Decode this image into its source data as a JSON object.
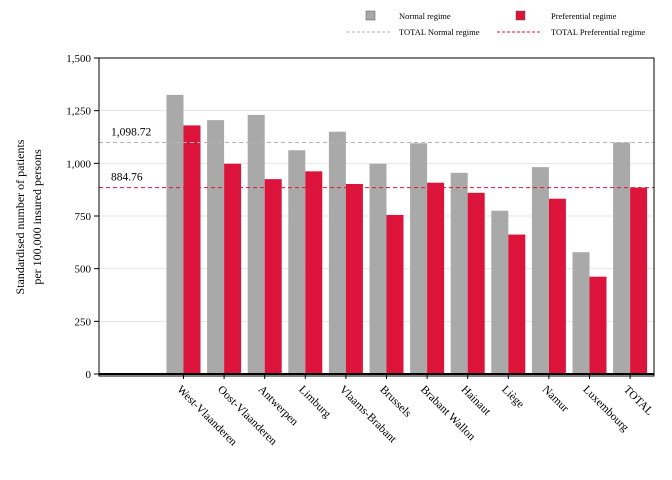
{
  "chart_data": {
    "type": "bar",
    "ylabel_line1": "Standardised number of patients",
    "ylabel_line2": "per 100,000 insured persons",
    "ylim": [
      0,
      1500
    ],
    "yticks": [
      0,
      250,
      500,
      750,
      1000,
      1250,
      1500
    ],
    "ytick_labels": [
      "0",
      "250",
      "500",
      "750",
      "1,000",
      "1,250",
      "1,500"
    ],
    "grid": true,
    "legend_position": "top-right",
    "categories": [
      "West-Vlaanderen",
      "Oost-Vlaanderen",
      "Antwerpen",
      "Limburg",
      "Vlaams-Brabant",
      "Brussels",
      "Brabant Wallon",
      "Hainaut",
      "Liège",
      "Namur",
      "Luxembourg",
      "TOTAL"
    ],
    "series": [
      {
        "name": "Normal regime",
        "color": "#a9a9a9",
        "values": [
          1325,
          1205,
          1230,
          1062,
          1150,
          998,
          1095,
          955,
          775,
          982,
          578,
          1098.72
        ]
      },
      {
        "name": "Preferential regime",
        "color": "#dc143c",
        "values": [
          1180,
          998,
          925,
          962,
          902,
          755,
          908,
          860,
          662,
          832,
          462,
          884.76
        ]
      }
    ],
    "reference_lines": [
      {
        "name": "TOTAL Normal regime",
        "value": 1098.72,
        "label": "1,098.72",
        "color": "#b4b4b4"
      },
      {
        "name": "TOTAL Preferential regime",
        "value": 884.76,
        "label": "884.76",
        "color": "#dc143c"
      }
    ]
  }
}
